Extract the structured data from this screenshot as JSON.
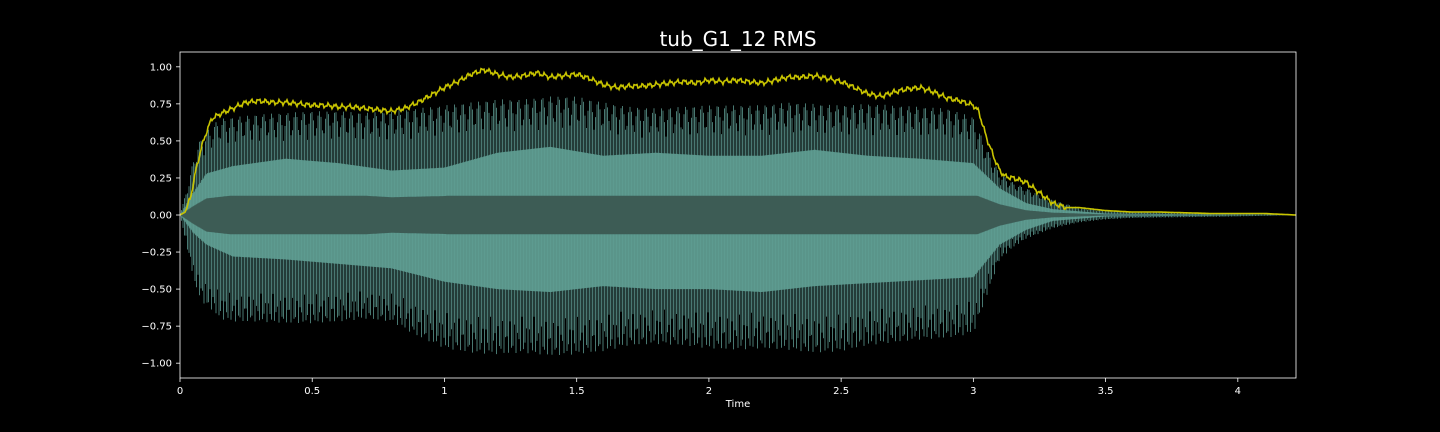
{
  "chart_data": {
    "type": "line",
    "title": "tub_G1_12 RMS",
    "xlabel": "Time",
    "ylabel": "",
    "xlim": [
      0,
      4.22
    ],
    "ylim": [
      -1.1,
      1.1
    ],
    "xticks": [
      0,
      0.5,
      1,
      1.5,
      2,
      2.5,
      3,
      3.5,
      4
    ],
    "xtick_labels": [
      "0",
      "0.5",
      "1",
      "1.5",
      "2",
      "2.5",
      "3",
      "3.5",
      "4"
    ],
    "yticks": [
      1.0,
      0.75,
      0.5,
      0.25,
      0.0,
      -0.25,
      -0.5,
      -0.75,
      -1.0
    ],
    "ytick_labels": [
      "1.00",
      "0.75",
      "0.50",
      "0.25",
      "0.00",
      "−0.25",
      "−0.50",
      "−0.75",
      "−1.00"
    ],
    "grid": false,
    "colors": {
      "background": "#000000",
      "axes_edge": "#ffffff",
      "text": "#ffffff",
      "waveform_fill": "#5f9e94",
      "waveform_core": "#3d5c55",
      "rms_line": "#c8c400"
    },
    "series": [
      {
        "kind": "rms_envelope",
        "x": [
          0,
          0.02,
          0.04,
          0.06,
          0.08,
          0.1,
          0.12,
          0.15,
          0.2,
          0.25,
          0.3,
          0.35,
          0.4,
          0.45,
          0.5,
          0.55,
          0.6,
          0.65,
          0.7,
          0.75,
          0.8,
          0.85,
          0.9,
          0.95,
          1.0,
          1.05,
          1.1,
          1.15,
          1.2,
          1.25,
          1.3,
          1.35,
          1.4,
          1.45,
          1.5,
          1.55,
          1.6,
          1.65,
          1.7,
          1.75,
          1.8,
          1.85,
          1.9,
          1.95,
          2.0,
          2.05,
          2.1,
          2.15,
          2.2,
          2.25,
          2.3,
          2.35,
          2.4,
          2.45,
          2.5,
          2.55,
          2.6,
          2.65,
          2.7,
          2.75,
          2.8,
          2.85,
          2.9,
          2.95,
          3.0,
          3.02,
          3.05,
          3.08,
          3.1,
          3.12,
          3.15,
          3.2,
          3.25,
          3.3,
          3.35,
          3.4,
          3.5,
          3.6,
          3.7,
          3.8,
          3.9,
          4.0,
          4.1,
          4.22
        ],
        "y": [
          0.0,
          0.02,
          0.12,
          0.3,
          0.45,
          0.56,
          0.65,
          0.68,
          0.72,
          0.76,
          0.77,
          0.76,
          0.76,
          0.75,
          0.74,
          0.74,
          0.73,
          0.73,
          0.72,
          0.71,
          0.7,
          0.72,
          0.76,
          0.81,
          0.86,
          0.9,
          0.95,
          0.98,
          0.95,
          0.93,
          0.94,
          0.96,
          0.93,
          0.94,
          0.95,
          0.92,
          0.88,
          0.86,
          0.87,
          0.87,
          0.88,
          0.89,
          0.9,
          0.89,
          0.91,
          0.9,
          0.91,
          0.9,
          0.89,
          0.91,
          0.93,
          0.93,
          0.94,
          0.92,
          0.9,
          0.86,
          0.82,
          0.8,
          0.83,
          0.85,
          0.86,
          0.83,
          0.79,
          0.77,
          0.74,
          0.7,
          0.52,
          0.38,
          0.3,
          0.26,
          0.25,
          0.22,
          0.15,
          0.08,
          0.05,
          0.05,
          0.03,
          0.02,
          0.02,
          0.015,
          0.01,
          0.01,
          0.01,
          0.0
        ]
      },
      {
        "kind": "waveform_peak",
        "x": [
          0,
          0.03,
          0.06,
          0.09,
          0.12,
          0.15,
          0.2,
          0.3,
          0.4,
          0.5,
          0.6,
          0.7,
          0.8,
          0.9,
          1.0,
          1.1,
          1.2,
          1.3,
          1.4,
          1.5,
          1.6,
          1.7,
          1.8,
          1.9,
          2.0,
          2.1,
          2.2,
          2.3,
          2.4,
          2.5,
          2.6,
          2.7,
          2.8,
          2.9,
          3.0,
          3.05,
          3.1,
          3.15,
          3.2,
          3.3,
          3.4,
          3.5,
          3.6,
          3.8,
          4.0,
          4.22
        ],
        "upper": [
          0.0,
          0.2,
          0.45,
          0.55,
          0.6,
          0.65,
          0.66,
          0.68,
          0.69,
          0.7,
          0.7,
          0.69,
          0.7,
          0.72,
          0.74,
          0.76,
          0.78,
          0.78,
          0.8,
          0.8,
          0.76,
          0.73,
          0.72,
          0.73,
          0.74,
          0.74,
          0.74,
          0.76,
          0.75,
          0.74,
          0.75,
          0.74,
          0.73,
          0.72,
          0.66,
          0.45,
          0.28,
          0.22,
          0.18,
          0.1,
          0.05,
          0.03,
          0.02,
          0.015,
          0.01,
          0.0
        ],
        "lower": [
          0.0,
          -0.25,
          -0.5,
          -0.6,
          -0.64,
          -0.7,
          -0.72,
          -0.72,
          -0.73,
          -0.73,
          -0.72,
          -0.7,
          -0.72,
          -0.82,
          -0.9,
          -0.93,
          -0.94,
          -0.93,
          -0.95,
          -0.94,
          -0.92,
          -0.88,
          -0.87,
          -0.88,
          -0.9,
          -0.91,
          -0.9,
          -0.91,
          -0.93,
          -0.92,
          -0.88,
          -0.86,
          -0.84,
          -0.83,
          -0.8,
          -0.55,
          -0.3,
          -0.22,
          -0.16,
          -0.09,
          -0.05,
          -0.03,
          -0.02,
          -0.015,
          -0.01,
          0.0
        ]
      },
      {
        "kind": "waveform_core",
        "x": [
          0,
          0.05,
          0.1,
          0.2,
          0.4,
          0.6,
          0.8,
          1.0,
          1.2,
          1.4,
          1.6,
          1.8,
          2.0,
          2.2,
          2.4,
          2.6,
          2.8,
          3.0,
          3.1,
          3.2,
          3.3,
          3.5,
          4.22
        ],
        "upper": [
          0.0,
          0.15,
          0.28,
          0.33,
          0.38,
          0.35,
          0.3,
          0.32,
          0.42,
          0.46,
          0.4,
          0.42,
          0.4,
          0.4,
          0.44,
          0.4,
          0.38,
          0.35,
          0.18,
          0.08,
          0.04,
          0.01,
          0.0
        ],
        "lower": [
          0.0,
          -0.12,
          -0.2,
          -0.28,
          -0.3,
          -0.33,
          -0.36,
          -0.45,
          -0.5,
          -0.52,
          -0.48,
          -0.5,
          -0.5,
          -0.52,
          -0.48,
          -0.46,
          -0.44,
          -0.42,
          -0.2,
          -0.1,
          -0.04,
          -0.01,
          0.0
        ]
      }
    ]
  }
}
